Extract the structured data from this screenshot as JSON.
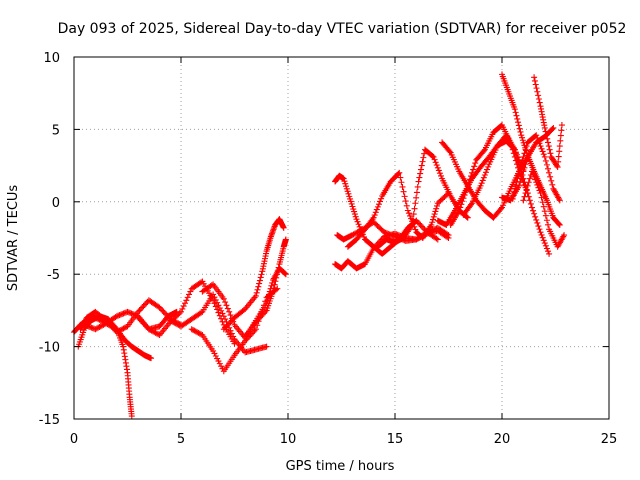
{
  "chart_data": {
    "type": "scatter",
    "title": "Day 093 of 2025, Sidereal Day-to-day VTEC variation (SDTVAR) for receiver p052",
    "xlabel": "GPS time / hours",
    "ylabel": "SDTVAR / TECUs",
    "xlim": [
      0,
      25
    ],
    "ylim": [
      -15,
      10
    ],
    "xticks": [
      "0",
      "5",
      "10",
      "15",
      "20",
      "25"
    ],
    "yticks": [
      "-15",
      "-10",
      "-5",
      "0",
      "5",
      "10"
    ],
    "grid": true,
    "marker": "plus",
    "color": "#ff0000",
    "series": [
      {
        "x": [
          0.0,
          0.3,
          0.6,
          1.0,
          1.5,
          2.0,
          2.4,
          2.7,
          3.0,
          3.3,
          3.6
        ],
        "y": [
          -9.0,
          -8.5,
          -8.2,
          -8.0,
          -8.4,
          -8.8,
          -9.6,
          -10.0,
          -10.3,
          -10.6,
          -10.8
        ]
      },
      {
        "x": [
          0.2,
          0.5,
          0.8,
          1.2,
          1.6,
          2.0,
          2.3,
          2.5,
          2.6,
          2.7
        ],
        "y": [
          -10.0,
          -8.7,
          -8.2,
          -7.9,
          -8.1,
          -8.8,
          -10.0,
          -11.8,
          -13.5,
          -14.8
        ]
      },
      {
        "x": [
          0.3,
          0.6,
          1.0,
          1.5,
          2.0,
          2.5,
          3.0,
          3.5,
          4.0,
          4.5,
          5.0
        ],
        "y": [
          -8.8,
          -8.0,
          -7.6,
          -8.2,
          -9.0,
          -8.6,
          -7.6,
          -6.8,
          -7.3,
          -8.1,
          -8.5
        ]
      },
      {
        "x": [
          0.5,
          1.0,
          1.5,
          2.0,
          2.5,
          3.0,
          3.5,
          4.0,
          4.4,
          4.8
        ],
        "y": [
          -8.5,
          -8.8,
          -8.4,
          -7.9,
          -7.6,
          -7.9,
          -8.8,
          -8.6,
          -7.9,
          -7.6
        ]
      },
      {
        "x": [
          3.0,
          3.5,
          4.0,
          4.5,
          5.0,
          5.5,
          6.0,
          6.5,
          7.0,
          7.5
        ],
        "y": [
          -8.0,
          -8.8,
          -9.2,
          -8.3,
          -7.6,
          -6.0,
          -5.5,
          -6.8,
          -8.5,
          -9.8
        ]
      },
      {
        "x": [
          4.5,
          5.0,
          5.5,
          6.0,
          6.5,
          7.0,
          7.5,
          8.0,
          8.5,
          9.0
        ],
        "y": [
          -8.2,
          -8.6,
          -8.1,
          -7.6,
          -6.4,
          -7.9,
          -9.5,
          -10.4,
          -10.2,
          -10.0
        ]
      },
      {
        "x": [
          5.5,
          6.0,
          6.5,
          7.0,
          7.5,
          8.0,
          8.5,
          9.0,
          9.5
        ],
        "y": [
          -8.8,
          -9.2,
          -10.3,
          -11.7,
          -10.6,
          -9.6,
          -8.8,
          -6.6,
          -6.0
        ]
      },
      {
        "x": [
          6.0,
          6.5,
          7.0,
          7.5,
          8.0,
          8.5,
          9.0,
          9.3,
          9.6,
          9.9
        ],
        "y": [
          -6.2,
          -5.7,
          -6.7,
          -8.5,
          -9.4,
          -8.2,
          -7.0,
          -5.4,
          -4.6,
          -5.0
        ]
      },
      {
        "x": [
          7.0,
          7.5,
          8.0,
          8.5,
          8.8,
          9.0,
          9.2,
          9.4,
          9.6,
          9.8
        ],
        "y": [
          -8.8,
          -8.0,
          -7.4,
          -6.5,
          -4.8,
          -3.4,
          -2.4,
          -1.6,
          -1.2,
          -1.8
        ]
      },
      {
        "x": [
          8.0,
          8.5,
          9.0,
          9.3,
          9.6,
          9.8,
          9.9
        ],
        "y": [
          -9.3,
          -8.3,
          -7.5,
          -6.2,
          -4.3,
          -3.1,
          -2.6
        ]
      },
      {
        "x": [
          12.2,
          12.5,
          12.8,
          13.2,
          13.6,
          14.0,
          14.5,
          15.0,
          15.5,
          16.0,
          16.5,
          17.0,
          17.5
        ],
        "y": [
          -4.3,
          -4.6,
          -4.1,
          -4.6,
          -4.3,
          -3.2,
          -2.4,
          -2.2,
          -2.5,
          -2.6,
          -2.1,
          -1.8,
          -2.3
        ]
      },
      {
        "x": [
          12.3,
          12.6,
          13.0,
          13.5,
          14.0,
          14.5,
          15.0,
          15.5,
          16.0,
          16.5,
          17.0,
          17.5
        ],
        "y": [
          -2.3,
          -2.6,
          -2.3,
          -1.9,
          -1.4,
          -2.1,
          -2.4,
          -2.7,
          -2.6,
          -2.2,
          -2.0,
          -2.5
        ]
      },
      {
        "x": [
          12.2,
          12.4,
          12.6,
          12.9,
          13.2,
          13.6,
          14.0,
          14.4,
          14.8,
          15.2,
          15.6,
          16.0,
          16.5,
          17.0
        ],
        "y": [
          1.4,
          1.8,
          1.6,
          0.2,
          -1.2,
          -2.6,
          -3.1,
          -3.6,
          -3.1,
          -2.6,
          -1.8,
          -1.3,
          -2.1,
          -2.6
        ]
      },
      {
        "x": [
          12.8,
          13.2,
          13.6,
          14.0,
          14.4,
          14.8,
          15.2,
          15.6,
          16.0,
          16.3,
          16.7,
          17.0,
          17.5
        ],
        "y": [
          -3.1,
          -2.6,
          -1.9,
          -1.1,
          0.4,
          1.4,
          2.0,
          -0.6,
          -2.1,
          -2.5,
          -1.6,
          -0.1,
          0.6
        ]
      },
      {
        "x": [
          14.2,
          14.6,
          15.0,
          15.4,
          15.8,
          16.1,
          16.4,
          16.8,
          17.2,
          17.6,
          18.0,
          18.4
        ],
        "y": [
          -3.1,
          -2.6,
          -2.8,
          -2.5,
          -1.6,
          1.4,
          3.6,
          3.1,
          1.6,
          0.4,
          -0.6,
          -1.1
        ]
      },
      {
        "x": [
          17.0,
          17.4,
          17.8,
          18.2,
          18.6,
          19.0,
          19.4,
          19.8,
          20.2,
          20.6,
          21.0
        ],
        "y": [
          -1.3,
          -1.6,
          -0.6,
          0.5,
          1.6,
          2.4,
          3.1,
          3.9,
          4.2,
          3.6,
          2.2
        ]
      },
      {
        "x": [
          17.2,
          17.6,
          18.0,
          18.4,
          18.8,
          19.2,
          19.6,
          20.0,
          20.4,
          20.8,
          21.2
        ],
        "y": [
          4.1,
          3.4,
          2.1,
          1.1,
          0.1,
          -0.6,
          -1.1,
          -0.4,
          0.9,
          2.1,
          3.1
        ]
      },
      {
        "x": [
          17.6,
          18.0,
          18.4,
          18.8,
          19.2,
          19.6,
          20.0,
          20.4,
          20.8,
          21.2
        ],
        "y": [
          -1.6,
          -0.6,
          1.1,
          2.9,
          3.6,
          4.8,
          5.3,
          4.1,
          2.1,
          0.6
        ]
      },
      {
        "x": [
          18.2,
          18.6,
          19.0,
          19.4,
          19.8,
          20.2,
          20.6,
          21.0,
          21.4,
          21.8,
          22.2
        ],
        "y": [
          -0.9,
          -0.1,
          1.1,
          2.6,
          3.9,
          4.6,
          3.6,
          1.6,
          -0.4,
          -2.1,
          -3.6
        ]
      },
      {
        "x": [
          20.0,
          20.3,
          20.6,
          20.9,
          21.2,
          21.5,
          21.8,
          22.1,
          22.4,
          22.7
        ],
        "y": [
          8.8,
          7.6,
          6.4,
          4.6,
          3.2,
          2.1,
          1.1,
          0.1,
          -1.1,
          -1.6
        ]
      },
      {
        "x": [
          20.5,
          20.8,
          21.2,
          21.6,
          22.0,
          22.4,
          22.7
        ],
        "y": [
          0.2,
          2.1,
          4.1,
          4.6,
          3.1,
          0.9,
          0.1
        ]
      },
      {
        "x": [
          21.0,
          21.4,
          21.8,
          22.2,
          22.6,
          22.9
        ],
        "y": [
          0.1,
          2.1,
          0.6,
          -1.9,
          -3.1,
          -2.3
        ]
      },
      {
        "x": [
          21.5,
          21.8,
          22.0,
          22.3,
          22.6,
          22.8
        ],
        "y": [
          8.6,
          6.6,
          5.1,
          3.1,
          2.4,
          5.3
        ]
      },
      {
        "x": [
          20.0,
          20.4,
          20.8,
          21.2,
          21.6,
          22.0,
          22.4
        ],
        "y": [
          0.3,
          0.1,
          1.1,
          3.1,
          4.1,
          4.5,
          5.1
        ]
      }
    ]
  }
}
